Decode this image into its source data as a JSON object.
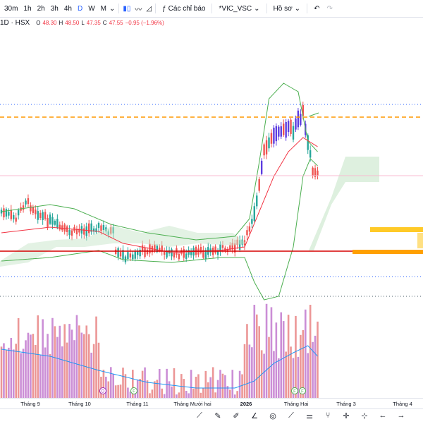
{
  "toolbar": {
    "timeframes": [
      {
        "label": "30m",
        "active": false
      },
      {
        "label": "1h",
        "active": false
      },
      {
        "label": "2h",
        "active": false
      },
      {
        "label": "3h",
        "active": false
      },
      {
        "label": "4h",
        "active": false
      },
      {
        "label": "D",
        "active": true
      },
      {
        "label": "W",
        "active": false
      },
      {
        "label": "M",
        "active": false
      }
    ],
    "indicators_label": "Các chỉ báo",
    "compare_label": "*VIC_VSC",
    "profile_label": "Hồ sơ"
  },
  "legend": {
    "symbol": "1D · HSX",
    "open_label": "O",
    "open": "48.30",
    "high_label": "H",
    "high": "48.50",
    "low_label": "L",
    "low": "47.35",
    "close_label": "C",
    "close": "47.55",
    "change": "−0.95 (−1.96%)"
  },
  "colors": {
    "up": "#26a69a",
    "down": "#ef5350",
    "bb": "#4caf50",
    "ma": "#f23645",
    "vol_ma": "#2196f3",
    "vol_bar_a": "#e57373",
    "vol_bar_b": "#ba68c8",
    "dashed_orange": "#ff9800",
    "dotted_blue": "#2962ff",
    "support_red": "#d50000"
  },
  "xaxis": {
    "labels": [
      "Tháng 9",
      "Tháng 10",
      "Tháng 11",
      "Tháng Mười hai",
      "2026",
      "Tháng Hai",
      "Tháng 3",
      "Tháng 4"
    ]
  },
  "event_markers": [
    "D",
    "F",
    "F",
    "F"
  ],
  "drawing_tools": [
    "trend-line-icon",
    "brush-icon",
    "pen-icon",
    "angle-icon",
    "target-icon",
    "ray-icon",
    "lines-icon",
    "fork-icon",
    "cross-icon",
    "crosshair-icon",
    "arrow-left-icon",
    "arrow-right-icon"
  ]
}
